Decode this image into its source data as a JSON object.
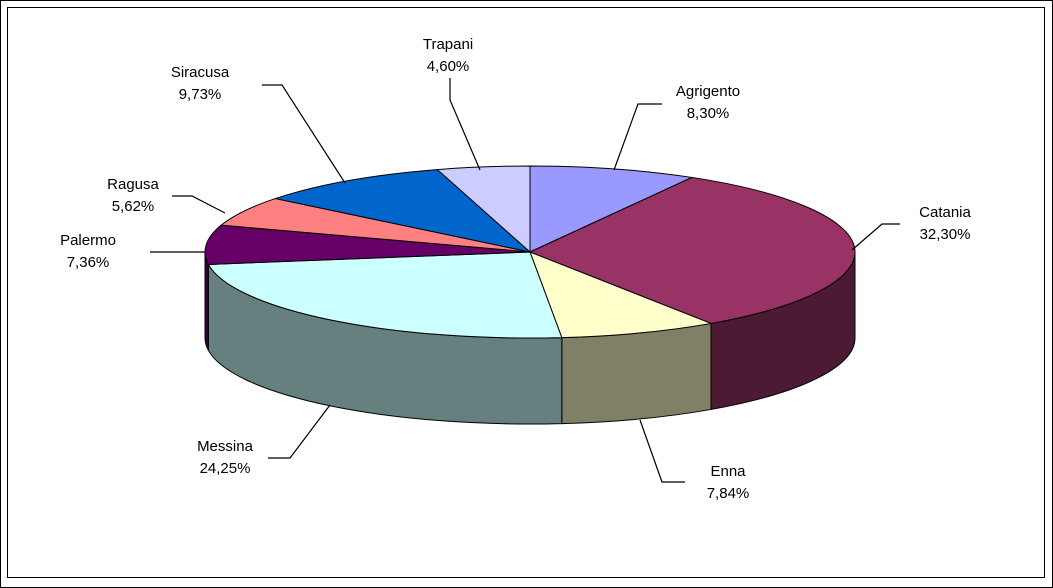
{
  "chart_data": {
    "type": "pie",
    "categories": [
      "Agrigento",
      "Catania",
      "Enna",
      "Messina",
      "Palermo",
      "Ragusa",
      "Siracusa",
      "Trapani"
    ],
    "values": [
      8.3,
      32.3,
      7.84,
      24.25,
      7.36,
      5.62,
      9.73,
      4.6
    ],
    "value_labels": [
      "8,30%",
      "32,30%",
      "7,84%",
      "24,25%",
      "7,36%",
      "5,62%",
      "9,73%",
      "4,60%"
    ],
    "colors": [
      "#9999ff",
      "#993366",
      "#ffffcc",
      "#ccffff",
      "#660066",
      "#ff8080",
      "#0066cc",
      "#ccccff"
    ]
  }
}
